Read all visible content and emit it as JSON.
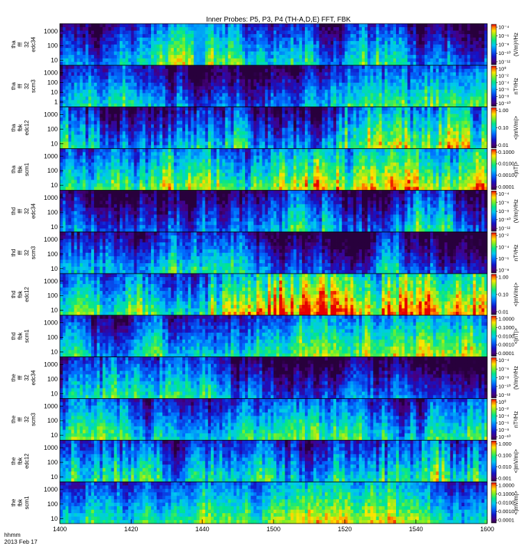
{
  "chart_data": {
    "type": "heatmap",
    "title": "Inner Probes: P5, P3, P4 (TH-A,D,E) FFT, FBK",
    "x_ticks": [
      "1400",
      "1420",
      "1440",
      "1500",
      "1520",
      "1540",
      "1600"
    ],
    "footer": {
      "time_format": "hhmm",
      "date": "2013 Feb 17"
    },
    "panels": [
      {
        "probe": "tha",
        "ylabel": [
          "tha",
          "fff",
          "32",
          "edc34"
        ],
        "yticks": [
          "1000",
          "100",
          "10"
        ],
        "cb_label": "(V/m)²/Hz",
        "cb_ticks": [
          "10⁻⁴",
          "10⁻⁶",
          "10⁻⁸",
          "10⁻¹⁰",
          "10⁻¹²"
        ],
        "intensity": 0.35,
        "variability": 0.55,
        "gap": [
          1437,
          1440
        ]
      },
      {
        "probe": "tha",
        "ylabel": [
          "tha",
          "fff",
          "32",
          "scm3"
        ],
        "yticks": [
          "1000",
          "100",
          "10",
          "1"
        ],
        "cb_label": "nT²/Hz",
        "cb_ticks": [
          "10⁰",
          "10⁻²",
          "10⁻⁴",
          "10⁻⁶",
          "10⁻⁸",
          "10⁻¹⁰"
        ],
        "intensity": 0.3,
        "variability": 0.45,
        "gap": null
      },
      {
        "probe": "tha",
        "ylabel": [
          "tha",
          "fbk",
          "edc12"
        ],
        "yticks": [
          "1000",
          "100",
          "10"
        ],
        "cb_label": "<|mV/m|>",
        "cb_ticks": [
          "1.00",
          "0.10",
          "0.01"
        ],
        "intensity": 0.42,
        "variability": 0.7,
        "gap": null
      },
      {
        "probe": "tha",
        "ylabel": [
          "tha",
          "fbk",
          "scm1"
        ],
        "yticks": [
          "1000",
          "100",
          "10"
        ],
        "cb_label": "<|nT|>",
        "cb_ticks": [
          "0.1000",
          "0.0100",
          "0.0010",
          "0.0001"
        ],
        "intensity": 0.5,
        "variability": 0.6,
        "gap": null
      },
      {
        "probe": "thd",
        "ylabel": [
          "thd",
          "fff",
          "32",
          "edc34"
        ],
        "yticks": [
          "1000",
          "100",
          "10"
        ],
        "cb_label": "(V/m)²/Hz",
        "cb_ticks": [
          "10⁻⁴",
          "10⁻⁶",
          "10⁻⁸",
          "10⁻¹⁰",
          "10⁻¹²"
        ],
        "intensity": 0.28,
        "variability": 0.6,
        "gap": null
      },
      {
        "probe": "thd",
        "ylabel": [
          "thd",
          "fff",
          "32",
          "scm3"
        ],
        "yticks": [
          "1000",
          "100",
          "10"
        ],
        "cb_label": "nT²/Hz",
        "cb_ticks": [
          "10⁻²",
          "10⁻⁴",
          "10⁻⁶",
          "10⁻⁸"
        ],
        "intensity": 0.25,
        "variability": 0.5,
        "gap": null
      },
      {
        "probe": "thd",
        "ylabel": [
          "thd",
          "fbk",
          "edc12"
        ],
        "yticks": [
          "1000",
          "100",
          "10"
        ],
        "cb_label": "<|mV/m|>",
        "cb_ticks": [
          "1.00",
          "0.10",
          "0.01"
        ],
        "intensity": 0.6,
        "variability": 0.8,
        "gap": null
      },
      {
        "probe": "thd",
        "ylabel": [
          "thd",
          "fbk",
          "scm1"
        ],
        "yticks": [
          "1000",
          "100",
          "10"
        ],
        "cb_label": "<|nT|>",
        "cb_ticks": [
          "1.0000",
          "0.1000",
          "0.0100",
          "0.0010",
          "0.0001"
        ],
        "intensity": 0.4,
        "variability": 0.45,
        "gap": null
      },
      {
        "probe": "the",
        "ylabel": [
          "the",
          "fff",
          "32",
          "edc34"
        ],
        "yticks": [
          "1000",
          "100",
          "10"
        ],
        "cb_label": "(V/m)²/Hz",
        "cb_ticks": [
          "10⁻⁴",
          "10⁻⁶",
          "10⁻⁸",
          "10⁻¹⁰",
          "10⁻¹²"
        ],
        "intensity": 0.25,
        "variability": 0.5,
        "gap": null
      },
      {
        "probe": "the",
        "ylabel": [
          "the",
          "fff",
          "32",
          "scm3"
        ],
        "yticks": [
          "1000",
          "100",
          "10"
        ],
        "cb_label": "nT²/Hz",
        "cb_ticks": [
          "10⁰",
          "10⁻²",
          "10⁻⁴",
          "10⁻⁶",
          "10⁻⁸",
          "10⁻¹⁰"
        ],
        "intensity": 0.3,
        "variability": 0.4,
        "gap": null
      },
      {
        "probe": "the",
        "ylabel": [
          "the",
          "fbk",
          "edc12"
        ],
        "yticks": [
          "1000",
          "100",
          "10"
        ],
        "cb_label": "<|mV/m|>",
        "cb_ticks": [
          "1.000",
          "0.100",
          "0.010",
          "0.001"
        ],
        "intensity": 0.45,
        "variability": 0.7,
        "gap": null
      },
      {
        "probe": "the",
        "ylabel": [
          "the",
          "fbk",
          "scm1"
        ],
        "yticks": [
          "1000",
          "100",
          "10"
        ],
        "cb_label": "<|mV/m|>",
        "cb_ticks": [
          "1.0000",
          "0.1000",
          "0.0100",
          "0.0010",
          "0.0001"
        ],
        "intensity": 0.45,
        "variability": 0.35,
        "gap": null
      }
    ]
  }
}
